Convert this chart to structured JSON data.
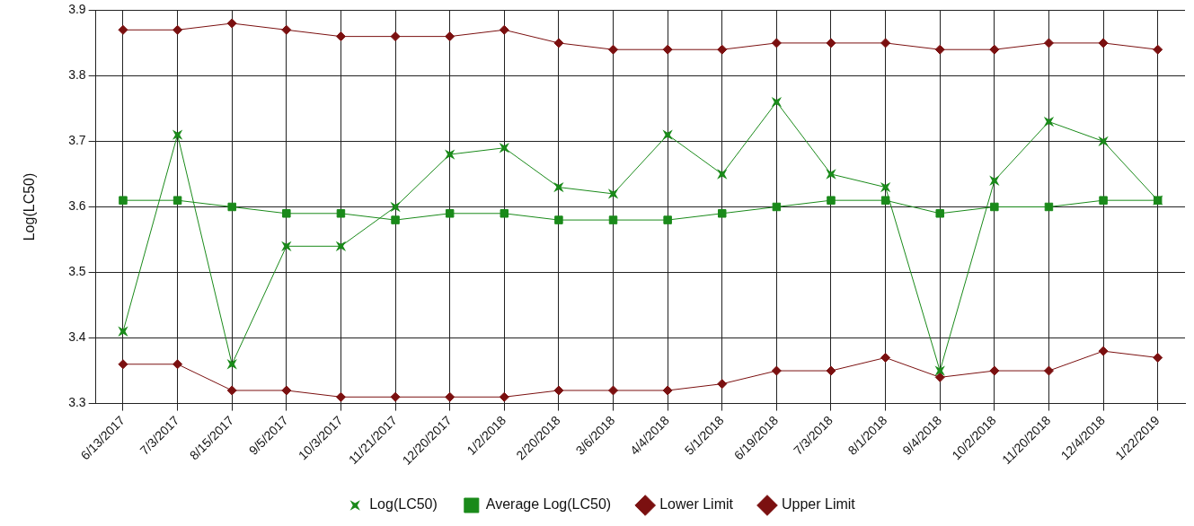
{
  "chart_data": {
    "type": "line",
    "ylabel": "Log(LC50)",
    "categories": [
      "6/13/2017",
      "7/3/2017",
      "8/15/2017",
      "9/5/2017",
      "10/3/2017",
      "11/21/2017",
      "12/20/2017",
      "1/2/2018",
      "2/20/2018",
      "3/6/2018",
      "4/4/2018",
      "5/1/2018",
      "6/19/2018",
      "7/3/2018",
      "8/1/2018",
      "9/4/2018",
      "10/2/2018",
      "11/20/2018",
      "12/4/2018",
      "1/22/2019"
    ],
    "series": [
      {
        "name": "Log(LC50)",
        "color": "#1a8a1a",
        "marker": "cross",
        "values": [
          3.41,
          3.71,
          3.36,
          3.54,
          3.54,
          3.6,
          3.68,
          3.69,
          3.63,
          3.62,
          3.71,
          3.65,
          3.76,
          3.65,
          3.63,
          3.35,
          3.64,
          3.73,
          3.7,
          3.61
        ]
      },
      {
        "name": "Average Log(LC50)",
        "color": "#1a8a1a",
        "marker": "square",
        "values": [
          3.61,
          3.61,
          3.6,
          3.59,
          3.59,
          3.58,
          3.59,
          3.59,
          3.58,
          3.58,
          3.58,
          3.59,
          3.6,
          3.61,
          3.61,
          3.59,
          3.6,
          3.6,
          3.61,
          3.61
        ]
      },
      {
        "name": "Lower Limit",
        "color": "#7b1010",
        "marker": "diamond",
        "values": [
          3.36,
          3.36,
          3.32,
          3.32,
          3.31,
          3.31,
          3.31,
          3.31,
          3.32,
          3.32,
          3.32,
          3.33,
          3.35,
          3.35,
          3.37,
          3.34,
          3.35,
          3.35,
          3.38,
          3.37
        ]
      },
      {
        "name": "Upper Limit",
        "color": "#7b1010",
        "marker": "diamond",
        "values": [
          3.87,
          3.87,
          3.88,
          3.87,
          3.86,
          3.86,
          3.86,
          3.87,
          3.85,
          3.84,
          3.84,
          3.84,
          3.85,
          3.85,
          3.85,
          3.84,
          3.84,
          3.85,
          3.85,
          3.84
        ]
      }
    ],
    "ylim": [
      3.3,
      3.9
    ],
    "yticks": [
      3.3,
      3.4,
      3.5,
      3.6,
      3.7,
      3.8,
      3.9
    ],
    "grid": true,
    "legend": "bottom"
  }
}
